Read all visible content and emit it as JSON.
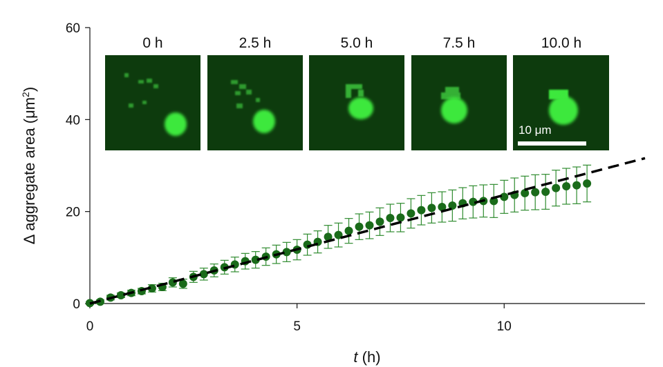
{
  "chart_data": {
    "type": "scatter",
    "xlabel_var": "t",
    "xlabel_unit": "(h)",
    "ylabel_main": "Δ aggregate area (μm",
    "ylabel_sup": "2",
    "ylabel_close": ")",
    "xlim": [
      0,
      13.4
    ],
    "ylim": [
      0,
      60
    ],
    "xticks": [
      0,
      5,
      10
    ],
    "yticks": [
      0,
      20,
      40,
      60
    ],
    "grid": false,
    "colors": {
      "points": "#1a6b1a",
      "errorbars": "#2e8b2e",
      "fit": "#000000"
    },
    "series": [
      {
        "x": [
          0,
          0.25,
          0.5,
          0.75,
          1.0,
          1.25,
          1.5,
          1.75,
          2.0,
          2.25,
          2.5,
          2.75,
          3.0,
          3.25,
          3.5,
          3.75,
          4.0,
          4.25,
          4.5,
          4.75,
          5.0,
          5.25,
          5.5,
          5.75,
          6.0,
          6.25,
          6.5,
          6.75,
          7.0,
          7.25,
          7.5,
          7.75,
          8.0,
          8.25,
          8.5,
          8.75,
          9.0,
          9.25,
          9.5,
          9.75,
          10.0,
          10.25,
          10.5,
          10.75,
          11.0,
          11.25,
          11.5,
          11.75,
          12.0
        ],
        "y": [
          0.1,
          0.4,
          1.3,
          1.8,
          2.3,
          2.7,
          3.3,
          3.6,
          4.6,
          4.3,
          5.8,
          6.4,
          7.2,
          7.9,
          8.5,
          9.2,
          9.5,
          10.2,
          10.7,
          11.2,
          11.7,
          12.8,
          13.4,
          14.5,
          14.9,
          15.8,
          16.7,
          17.0,
          17.8,
          18.6,
          18.7,
          19.6,
          20.3,
          20.8,
          21.0,
          21.3,
          21.8,
          22.1,
          22.3,
          22.3,
          23.2,
          23.6,
          24.0,
          24.2,
          24.3,
          25.1,
          25.5,
          25.7,
          26.1
        ],
        "err": [
          0.3,
          0.4,
          0.5,
          0.5,
          0.6,
          0.6,
          0.8,
          0.8,
          1.0,
          1.0,
          1.2,
          1.3,
          1.4,
          1.5,
          1.6,
          1.7,
          1.8,
          1.9,
          2.0,
          2.1,
          2.2,
          2.3,
          2.4,
          2.5,
          2.6,
          2.7,
          2.8,
          2.9,
          3.0,
          3.0,
          3.1,
          3.2,
          3.2,
          3.3,
          3.3,
          3.4,
          3.4,
          3.5,
          3.5,
          3.6,
          3.6,
          3.7,
          3.7,
          3.8,
          3.8,
          3.9,
          3.9,
          4.0,
          4.0
        ]
      }
    ],
    "fit_line": {
      "x": [
        0,
        13.4
      ],
      "y": [
        0,
        31.6
      ]
    },
    "inset": {
      "panels": [
        {
          "label": "0 h"
        },
        {
          "label": "2.5 h"
        },
        {
          "label": "5.0 h"
        },
        {
          "label": "7.5 h"
        },
        {
          "label": "10.0 h"
        }
      ],
      "scale_bar_label": "10 μm"
    }
  }
}
